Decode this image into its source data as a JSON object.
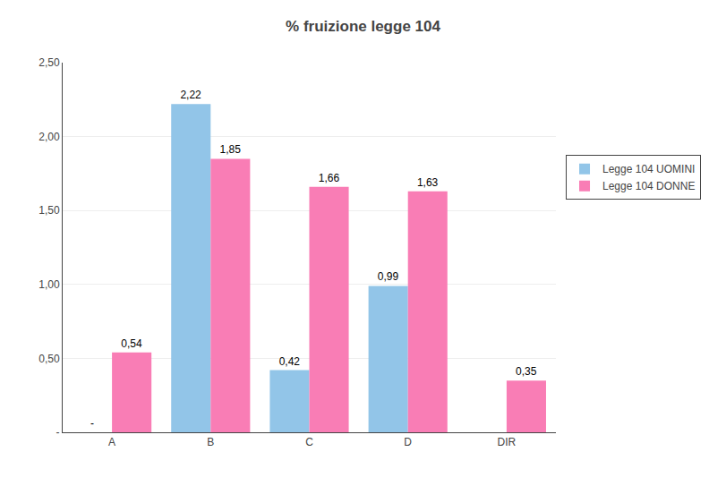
{
  "chart_data": {
    "type": "bar",
    "title": "% fruizione legge 104",
    "categories": [
      "A",
      "B",
      "C",
      "D",
      "DIR"
    ],
    "series": [
      {
        "name": "Legge 104 UOMINI",
        "color": "#92C5E8",
        "values": [
          0.0,
          2.22,
          0.42,
          0.99,
          0.0
        ],
        "value_labels": [
          "-",
          "2,22",
          "0,42",
          "0,99",
          null
        ]
      },
      {
        "name": "Legge 104 DONNE",
        "color": "#F97DB5",
        "values": [
          0.54,
          1.85,
          1.66,
          1.63,
          0.35
        ],
        "value_labels": [
          "0,54",
          "1,85",
          "1,66",
          "1,63",
          "0,35"
        ]
      }
    ],
    "ylim": [
      0,
      2.5
    ],
    "yticks": [
      {
        "value": 0,
        "label": "-"
      },
      {
        "value": 0.5,
        "label": "0,50"
      },
      {
        "value": 1,
        "label": "1,00"
      },
      {
        "value": 1.5,
        "label": "1,50"
      },
      {
        "value": 2,
        "label": "2,00"
      },
      {
        "value": 2.5,
        "label": "2,50"
      }
    ],
    "grid": true,
    "legend": "right",
    "data_labels": true
  }
}
